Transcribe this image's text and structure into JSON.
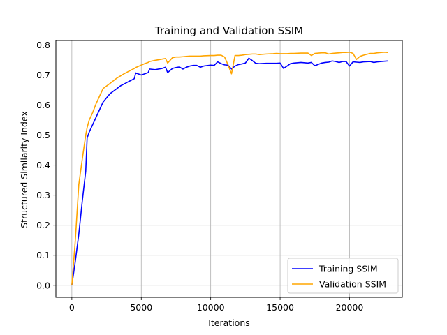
{
  "chart_data": {
    "type": "line",
    "title": "Training and Validation SSIM",
    "xlabel": "Iterations",
    "ylabel": "Structured Similarity Index",
    "xlim": [
      -1150,
      23800
    ],
    "ylim": [
      -0.04,
      0.815
    ],
    "xticks": [
      0,
      5000,
      10000,
      15000,
      20000
    ],
    "yticks": [
      0.0,
      0.1,
      0.2,
      0.3,
      0.4,
      0.5,
      0.6,
      0.7,
      0.8
    ],
    "xtick_labels": [
      "0",
      "5000",
      "10000",
      "15000",
      "20000"
    ],
    "ytick_labels": [
      "0.0",
      "0.1",
      "0.2",
      "0.3",
      "0.4",
      "0.5",
      "0.6",
      "0.7",
      "0.8"
    ],
    "grid": true,
    "legend_position": "lower-right",
    "series": [
      {
        "name": "Training SSIM",
        "color": "#0000ff",
        "x": [
          0,
          250,
          500,
          750,
          1000,
          1100,
          1250,
          1500,
          1750,
          2000,
          2250,
          2750,
          3250,
          3500,
          3750,
          4000,
          4250,
          4500,
          4600,
          5000,
          5250,
          5500,
          5600,
          6000,
          6500,
          6750,
          6900,
          7250,
          7500,
          7750,
          8000,
          8250,
          8500,
          8750,
          9000,
          9250,
          9500,
          10000,
          10250,
          10500,
          10750,
          11000,
          11250,
          11500,
          11750,
          12000,
          12250,
          12500,
          12750,
          13000,
          13250,
          13500,
          14000,
          14500,
          14750,
          15000,
          15250,
          15500,
          15750,
          16000,
          16500,
          17000,
          17250,
          17500,
          18000,
          18250,
          18500,
          18750,
          19000,
          19250,
          19500,
          19750,
          20000,
          20250,
          20500,
          20750,
          21000,
          21500,
          21750,
          22000,
          22500,
          22750
        ],
        "y": [
          0.0,
          0.08,
          0.17,
          0.28,
          0.38,
          0.49,
          0.51,
          0.535,
          0.56,
          0.585,
          0.61,
          0.638,
          0.655,
          0.664,
          0.67,
          0.676,
          0.682,
          0.688,
          0.707,
          0.7,
          0.704,
          0.708,
          0.72,
          0.718,
          0.722,
          0.726,
          0.708,
          0.722,
          0.725,
          0.727,
          0.72,
          0.726,
          0.73,
          0.732,
          0.732,
          0.726,
          0.73,
          0.733,
          0.732,
          0.744,
          0.738,
          0.734,
          0.733,
          0.72,
          0.73,
          0.735,
          0.737,
          0.74,
          0.756,
          0.748,
          0.739,
          0.738,
          0.739,
          0.739,
          0.739,
          0.74,
          0.722,
          0.73,
          0.738,
          0.74,
          0.742,
          0.74,
          0.742,
          0.731,
          0.74,
          0.742,
          0.743,
          0.747,
          0.745,
          0.742,
          0.745,
          0.745,
          0.73,
          0.744,
          0.743,
          0.742,
          0.744,
          0.745,
          0.742,
          0.744,
          0.746,
          0.747
        ]
      },
      {
        "name": "Validation SSIM",
        "color": "#ffa500",
        "x": [
          0,
          250,
          500,
          750,
          1000,
          1100,
          1250,
          1500,
          1750,
          2000,
          2250,
          2750,
          3250,
          3500,
          3750,
          4000,
          4250,
          4500,
          4600,
          5000,
          5250,
          5500,
          5600,
          6000,
          6500,
          6750,
          6900,
          7250,
          7500,
          7750,
          8000,
          8250,
          8500,
          8750,
          9000,
          9250,
          9500,
          10000,
          10250,
          10500,
          10750,
          11000,
          11250,
          11500,
          11750,
          12000,
          12250,
          12500,
          12750,
          13000,
          13250,
          13500,
          14000,
          14500,
          14750,
          15000,
          15250,
          15500,
          15750,
          16000,
          16500,
          17000,
          17250,
          17500,
          18000,
          18250,
          18500,
          18750,
          19000,
          19250,
          19500,
          19750,
          20000,
          20250,
          20500,
          20750,
          21000,
          21500,
          21750,
          22000,
          22500,
          22750
        ],
        "y": [
          0.0,
          0.15,
          0.335,
          0.42,
          0.5,
          0.525,
          0.55,
          0.575,
          0.605,
          0.63,
          0.655,
          0.672,
          0.69,
          0.697,
          0.704,
          0.71,
          0.716,
          0.722,
          0.725,
          0.733,
          0.738,
          0.742,
          0.745,
          0.749,
          0.753,
          0.755,
          0.74,
          0.758,
          0.76,
          0.76,
          0.761,
          0.762,
          0.763,
          0.763,
          0.763,
          0.763,
          0.764,
          0.765,
          0.765,
          0.766,
          0.766,
          0.76,
          0.734,
          0.704,
          0.765,
          0.765,
          0.766,
          0.768,
          0.769,
          0.77,
          0.77,
          0.768,
          0.77,
          0.771,
          0.772,
          0.771,
          0.771,
          0.771,
          0.772,
          0.772,
          0.773,
          0.773,
          0.765,
          0.772,
          0.774,
          0.774,
          0.77,
          0.772,
          0.773,
          0.774,
          0.775,
          0.775,
          0.776,
          0.772,
          0.752,
          0.762,
          0.766,
          0.772,
          0.772,
          0.774,
          0.776,
          0.775
        ]
      }
    ]
  }
}
